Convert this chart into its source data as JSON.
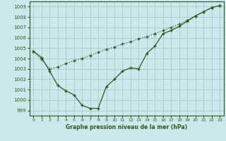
{
  "title": "Graphe pression niveau de la mer (hPa)",
  "bg_color": "#cce8ec",
  "grid_color": "#aacdd4",
  "line_color": "#2d5a1b",
  "xlim": [
    -0.5,
    23.5
  ],
  "ylim": [
    998.5,
    1009.5
  ],
  "xticks": [
    0,
    1,
    2,
    3,
    4,
    5,
    6,
    7,
    8,
    9,
    10,
    11,
    12,
    13,
    14,
    15,
    16,
    17,
    18,
    19,
    20,
    21,
    22,
    23
  ],
  "yticks": [
    999,
    1000,
    1001,
    1002,
    1003,
    1004,
    1005,
    1006,
    1007,
    1008,
    1009
  ],
  "line_top_x": [
    0,
    1,
    2,
    3,
    4,
    5,
    6,
    7,
    8,
    9,
    10,
    11,
    12,
    13,
    14,
    15,
    16,
    17,
    18,
    19,
    20,
    21,
    22,
    23
  ],
  "line_top_y": [
    1004.7,
    1003.9,
    1003.0,
    1003.2,
    1003.5,
    1003.8,
    1004.0,
    1004.3,
    1004.6,
    1004.9,
    1005.1,
    1005.4,
    1005.6,
    1005.9,
    1006.1,
    1006.4,
    1006.7,
    1007.0,
    1007.3,
    1007.7,
    1008.1,
    1008.5,
    1008.9,
    1009.1
  ],
  "line_bot_x": [
    0,
    1,
    2,
    3,
    4,
    5,
    6,
    7,
    8,
    9,
    10,
    11,
    12,
    13,
    14,
    15,
    16,
    17,
    18,
    19,
    20,
    21,
    22,
    23
  ],
  "line_bot_y": [
    1004.7,
    1004.1,
    1002.8,
    1001.4,
    1000.9,
    1000.5,
    999.5,
    999.2,
    999.2,
    1001.3,
    1002.0,
    1002.8,
    1003.1,
    1003.0,
    1004.5,
    1005.2,
    1006.4,
    1006.7,
    1007.1,
    1007.6,
    1008.1,
    1008.5,
    1008.9,
    1009.1
  ]
}
